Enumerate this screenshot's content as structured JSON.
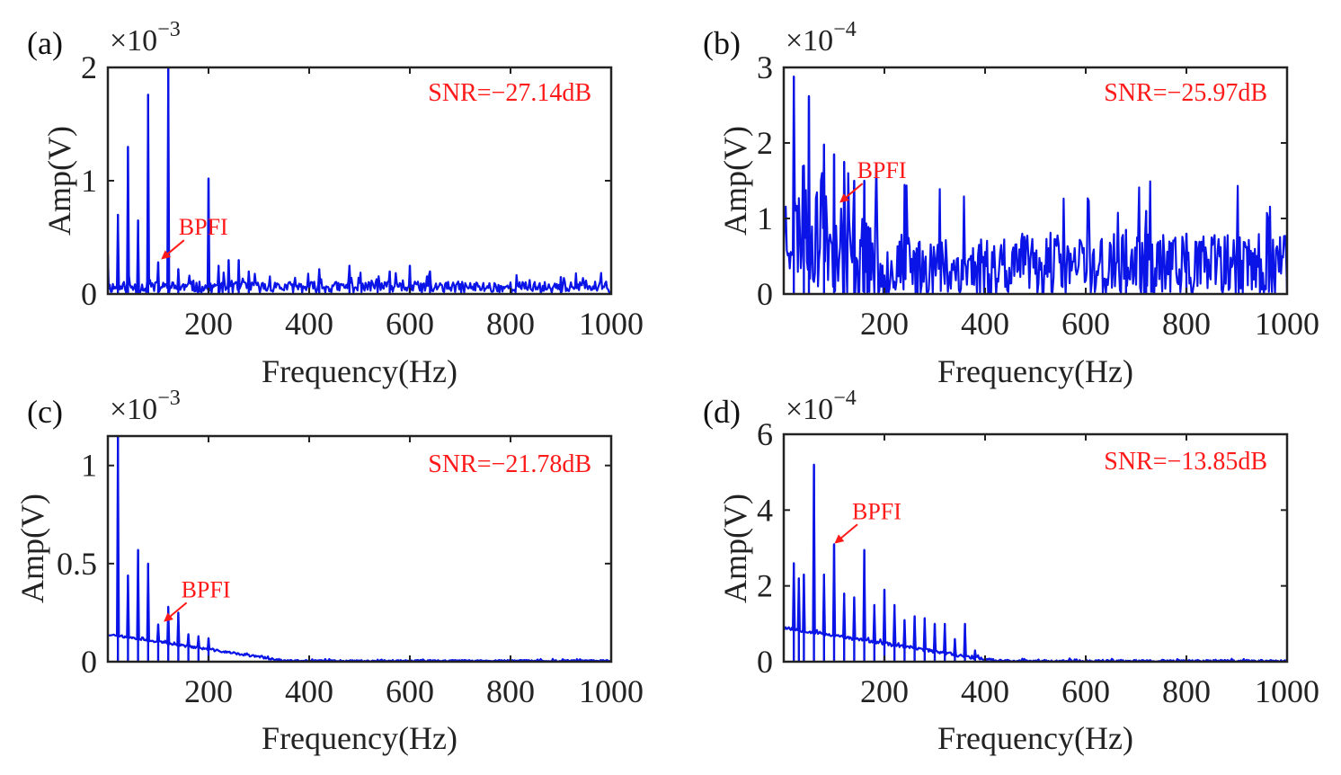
{
  "figure": {
    "colors": {
      "series": "#0a14e6",
      "annotation": "#ff1a1a",
      "axis": "#222222"
    }
  },
  "chart_data": [
    {
      "type": "line",
      "panel": "(a)",
      "xlabel": "Frequency(Hz)",
      "ylabel": "Amp(V)",
      "multiplier": {
        "base": "×10",
        "exponent": "−3"
      },
      "xlim": [
        0,
        1000
      ],
      "ylim": [
        0,
        2
      ],
      "xticks": [
        200,
        400,
        600,
        800,
        1000
      ],
      "yticks": [
        0,
        1,
        2
      ],
      "snr_label": "SNR=−27.14dB",
      "bpfi": {
        "label": "BPFI",
        "x": 105,
        "y": 0.3
      },
      "noise": {
        "base": 0.06,
        "spread": 0.05,
        "decay_to": 0.06,
        "decay_until": 300,
        "seed": 11
      },
      "peaks": [
        [
          0,
          0.35
        ],
        [
          20,
          0.7
        ],
        [
          40,
          1.3
        ],
        [
          60,
          0.65
        ],
        [
          80,
          1.76
        ],
        [
          100,
          0.28
        ],
        [
          120,
          2.0
        ],
        [
          140,
          0.22
        ],
        [
          200,
          1.02
        ],
        [
          220,
          0.25
        ],
        [
          240,
          0.3
        ],
        [
          260,
          0.3
        ],
        [
          280,
          0.2
        ],
        [
          420,
          0.22
        ],
        [
          480,
          0.25
        ],
        [
          560,
          0.2
        ],
        [
          600,
          0.25
        ],
        [
          640,
          0.2
        ],
        [
          900,
          0.15
        ]
      ]
    },
    {
      "type": "line",
      "panel": "(b)",
      "xlabel": "Frequency(Hz)",
      "ylabel": "Amp(V)",
      "multiplier": {
        "base": "×10",
        "exponent": "−4"
      },
      "xlim": [
        0,
        1000
      ],
      "ylim": [
        0,
        3
      ],
      "xticks": [
        200,
        400,
        600,
        800,
        1000
      ],
      "yticks": [
        0,
        1,
        2,
        3
      ],
      "snr_label": "SNR=−25.97dB",
      "bpfi": {
        "label": "BPFI",
        "x": 110,
        "y": 1.2
      },
      "noise": {
        "base": 0.35,
        "spread": 0.45,
        "decay_to": 0.35,
        "decay_until": 200,
        "start_level": 0.9,
        "seed": 23
      },
      "peaks": [
        [
          20,
          2.88
        ],
        [
          40,
          1.7
        ],
        [
          50,
          2.62
        ],
        [
          80,
          1.98
        ],
        [
          100,
          1.85
        ],
        [
          120,
          1.75
        ],
        [
          140,
          1.5
        ],
        [
          160,
          1.5
        ],
        [
          720,
          1.1
        ],
        [
          680,
          0.85
        ],
        [
          800,
          0.8
        ]
      ]
    },
    {
      "type": "line",
      "panel": "(c)",
      "xlabel": "Frequency(Hz)",
      "ylabel": "Amp(V)",
      "multiplier": {
        "base": "×10",
        "exponent": "−3"
      },
      "xlim": [
        0,
        1000
      ],
      "ylim": [
        0,
        1.15
      ],
      "xticks": [
        200,
        400,
        600,
        800,
        1000
      ],
      "yticks": [
        0,
        0.5,
        1
      ],
      "snr_label": "SNR=−21.78dB",
      "bpfi": {
        "label": "BPFI",
        "x": 110,
        "y": 0.2
      },
      "noise": {
        "base": 0.005,
        "spread": 0.004,
        "decay_to": 0.005,
        "decay_until": 350,
        "start_level": 0.14,
        "seed": 37
      },
      "peaks": [
        [
          20,
          1.15
        ],
        [
          40,
          0.44
        ],
        [
          60,
          0.57
        ],
        [
          80,
          0.5
        ],
        [
          100,
          0.19
        ],
        [
          120,
          0.28
        ],
        [
          140,
          0.25
        ],
        [
          160,
          0.14
        ],
        [
          180,
          0.13
        ],
        [
          200,
          0.12
        ]
      ]
    },
    {
      "type": "line",
      "panel": "(d)",
      "xlabel": "Frequency(Hz)",
      "ylabel": "Amp(V)",
      "multiplier": {
        "base": "×10",
        "exponent": "−4"
      },
      "xlim": [
        0,
        1000
      ],
      "ylim": [
        0,
        6
      ],
      "xticks": [
        200,
        400,
        600,
        800,
        1000
      ],
      "yticks": [
        0,
        2,
        4,
        6
      ],
      "snr_label": "SNR=−13.85dB",
      "bpfi": {
        "label": "BPFI",
        "x": 100,
        "y": 3.1
      },
      "noise": {
        "base": 0.02,
        "spread": 0.03,
        "decay_to": 0.02,
        "decay_until": 420,
        "start_level": 0.9,
        "seed": 53
      },
      "peaks": [
        [
          20,
          2.6
        ],
        [
          30,
          2.2
        ],
        [
          40,
          2.3
        ],
        [
          60,
          5.2
        ],
        [
          80,
          2.3
        ],
        [
          100,
          3.1
        ],
        [
          120,
          1.8
        ],
        [
          140,
          1.7
        ],
        [
          160,
          2.95
        ],
        [
          180,
          1.5
        ],
        [
          200,
          1.9
        ],
        [
          220,
          1.5
        ],
        [
          240,
          1.1
        ],
        [
          260,
          1.2
        ],
        [
          280,
          1.15
        ],
        [
          300,
          1.0
        ],
        [
          320,
          1.0
        ],
        [
          340,
          0.6
        ],
        [
          360,
          1.0
        ],
        [
          380,
          0.3
        ]
      ]
    }
  ]
}
